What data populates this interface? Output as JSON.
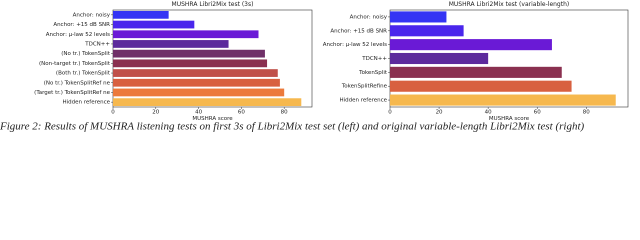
{
  "chart_data": [
    {
      "type": "barh",
      "title": "MUSHRA Libri2Mix test (3s)",
      "xlabel": "MUSHRA score",
      "categories": [
        "Anchor: noisy",
        "Anchor: +15 dB SNR",
        "Anchor: μ-law 52 levels",
        "TDCN++",
        "(No tr.) TokenSplit",
        "(Non-target tr.) TokenSplit",
        "(Both tr.) TokenSplit",
        "(No tr.) TokenSplitRef ne",
        "(Target tr.) TokenSplitRef ne",
        "Hidden reference"
      ],
      "values": [
        26,
        38,
        68,
        54,
        71,
        72,
        77,
        78,
        80,
        88
      ],
      "colors": [
        "#3434f4",
        "#4a26ec",
        "#6a1ad6",
        "#5c2a9c",
        "#703068",
        "#8a3050",
        "#c0504a",
        "#d86040",
        "#ec7a3c",
        "#f6b84e"
      ],
      "xlim": [
        0,
        93
      ],
      "xticks": [
        0,
        20,
        40,
        60,
        80
      ]
    },
    {
      "type": "barh",
      "title": "MUSHRA Libri2Mix test (variable-length)",
      "xlabel": "MUSHRA score",
      "categories": [
        "Anchor: noisy",
        "Anchor: +15 dB SNR",
        "Anchor: μ-law 52 levels",
        "TDCN++",
        "TokenSplit",
        "TokenSplitRefine",
        "Hidden reference"
      ],
      "values": [
        23,
        30,
        66,
        40,
        70,
        74,
        92
      ],
      "colors": [
        "#3434f4",
        "#4a26ec",
        "#6a1ad6",
        "#5c2a9c",
        "#8a3050",
        "#d86040",
        "#f6b84e"
      ],
      "xlim": [
        0,
        97
      ],
      "xticks": [
        0,
        20,
        40,
        60,
        80
      ]
    }
  ],
  "caption": "Figure 2: Results of MUSHRA listening tests on first 3s of Libri2Mix test set (left) and original variable-length Libri2Mix test (right)"
}
